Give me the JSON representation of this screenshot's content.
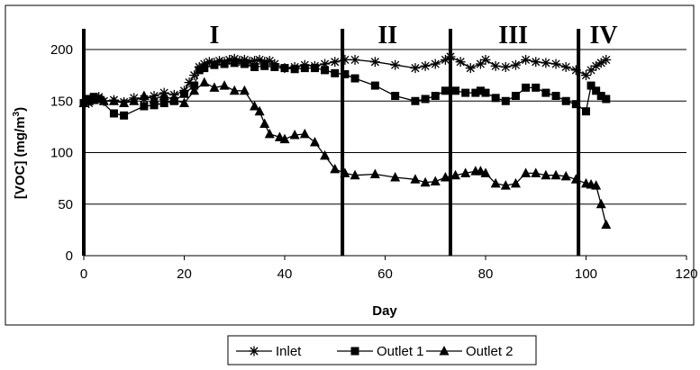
{
  "chart_data": {
    "type": "line",
    "title": "",
    "xlabel": "Day",
    "ylabel_prefix": "[VOC] (mg/m",
    "ylabel_sup": "3",
    "ylabel_suffix": ")",
    "xlim": [
      0,
      120
    ],
    "ylim": [
      0,
      220
    ],
    "x_ticks": [
      "0",
      "20",
      "40",
      "60",
      "80",
      "100",
      "120"
    ],
    "y_ticks": [
      "0",
      "50",
      "100",
      "150",
      "200"
    ],
    "y_grid": [
      50,
      100,
      150,
      200
    ],
    "grid": true,
    "legend_position": "bottom",
    "phase_dividers": [
      0,
      51.5,
      73,
      98.5
    ],
    "phases": [
      {
        "label": "I",
        "x": 26
      },
      {
        "label": "II",
        "x": 60.5
      },
      {
        "label": "III",
        "x": 85.5
      },
      {
        "label": "IV",
        "x": 103.5
      }
    ],
    "series": [
      {
        "name": "Inlet",
        "marker": "star",
        "points": [
          [
            1,
            148
          ],
          [
            2,
            152
          ],
          [
            3,
            154
          ],
          [
            4,
            150
          ],
          [
            6,
            151
          ],
          [
            8,
            149
          ],
          [
            10,
            153
          ],
          [
            12,
            152
          ],
          [
            14,
            155
          ],
          [
            16,
            158
          ],
          [
            18,
            156
          ],
          [
            20,
            160
          ],
          [
            21,
            168
          ],
          [
            22,
            175
          ],
          [
            23,
            183
          ],
          [
            24,
            186
          ],
          [
            25,
            188
          ],
          [
            26,
            187
          ],
          [
            27,
            189
          ],
          [
            28,
            188
          ],
          [
            29,
            190
          ],
          [
            30,
            191
          ],
          [
            31,
            189
          ],
          [
            32,
            190
          ],
          [
            33,
            188
          ],
          [
            34,
            189
          ],
          [
            35,
            190
          ],
          [
            36,
            188
          ],
          [
            37,
            189
          ],
          [
            38,
            186
          ],
          [
            40,
            182
          ],
          [
            42,
            183
          ],
          [
            44,
            185
          ],
          [
            46,
            184
          ],
          [
            48,
            186
          ],
          [
            50,
            188
          ],
          [
            52,
            190
          ],
          [
            54,
            190
          ],
          [
            58,
            188
          ],
          [
            62,
            185
          ],
          [
            66,
            182
          ],
          [
            68,
            184
          ],
          [
            70,
            186
          ],
          [
            72,
            190
          ],
          [
            73,
            193
          ],
          [
            75,
            188
          ],
          [
            77,
            182
          ],
          [
            79,
            186
          ],
          [
            80,
            190
          ],
          [
            82,
            184
          ],
          [
            84,
            183
          ],
          [
            86,
            185
          ],
          [
            88,
            190
          ],
          [
            90,
            188
          ],
          [
            92,
            187
          ],
          [
            94,
            186
          ],
          [
            96,
            183
          ],
          [
            98,
            180
          ],
          [
            100,
            175
          ],
          [
            101,
            180
          ],
          [
            102,
            184
          ],
          [
            103,
            187
          ],
          [
            104,
            190
          ]
        ]
      },
      {
        "name": "Outlet 1",
        "marker": "square",
        "points": [
          [
            0,
            148
          ],
          [
            1,
            152
          ],
          [
            2,
            154
          ],
          [
            3,
            152
          ],
          [
            6,
            138
          ],
          [
            8,
            136
          ],
          [
            12,
            145
          ],
          [
            14,
            146
          ],
          [
            16,
            148
          ],
          [
            18,
            150
          ],
          [
            20,
            157
          ],
          [
            22,
            165
          ],
          [
            23,
            180
          ],
          [
            24,
            182
          ],
          [
            26,
            185
          ],
          [
            28,
            186
          ],
          [
            30,
            187
          ],
          [
            32,
            186
          ],
          [
            34,
            183
          ],
          [
            36,
            184
          ],
          [
            38,
            183
          ],
          [
            40,
            182
          ],
          [
            42,
            181
          ],
          [
            44,
            182
          ],
          [
            46,
            182
          ],
          [
            48,
            180
          ],
          [
            50,
            177
          ],
          [
            52,
            176
          ],
          [
            54,
            172
          ],
          [
            58,
            165
          ],
          [
            62,
            155
          ],
          [
            66,
            150
          ],
          [
            68,
            152
          ],
          [
            70,
            155
          ],
          [
            72,
            160
          ],
          [
            74,
            160
          ],
          [
            76,
            158
          ],
          [
            78,
            158
          ],
          [
            79,
            160
          ],
          [
            80,
            158
          ],
          [
            82,
            153
          ],
          [
            84,
            150
          ],
          [
            86,
            155
          ],
          [
            88,
            163
          ],
          [
            90,
            163
          ],
          [
            92,
            158
          ],
          [
            94,
            155
          ],
          [
            96,
            150
          ],
          [
            98,
            147
          ],
          [
            100,
            140
          ],
          [
            101,
            165
          ],
          [
            102,
            160
          ],
          [
            103,
            155
          ],
          [
            104,
            152
          ]
        ]
      },
      {
        "name": "Outlet 2",
        "marker": "triangle",
        "points": [
          [
            0,
            148
          ],
          [
            1,
            150
          ],
          [
            2,
            151
          ],
          [
            4,
            150
          ],
          [
            6,
            150
          ],
          [
            8,
            148
          ],
          [
            10,
            150
          ],
          [
            12,
            155
          ],
          [
            14,
            152
          ],
          [
            16,
            155
          ],
          [
            18,
            151
          ],
          [
            20,
            148
          ],
          [
            22,
            160
          ],
          [
            24,
            168
          ],
          [
            26,
            163
          ],
          [
            28,
            165
          ],
          [
            30,
            160
          ],
          [
            32,
            160
          ],
          [
            34,
            145
          ],
          [
            35,
            140
          ],
          [
            36,
            128
          ],
          [
            37,
            118
          ],
          [
            39,
            115
          ],
          [
            40,
            113
          ],
          [
            42,
            117
          ],
          [
            44,
            118
          ],
          [
            46,
            110
          ],
          [
            48,
            97
          ],
          [
            50,
            84
          ],
          [
            52,
            80
          ],
          [
            54,
            78
          ],
          [
            58,
            79
          ],
          [
            62,
            76
          ],
          [
            66,
            74
          ],
          [
            68,
            71
          ],
          [
            70,
            72
          ],
          [
            72,
            76
          ],
          [
            74,
            78
          ],
          [
            76,
            80
          ],
          [
            78,
            82
          ],
          [
            79,
            82
          ],
          [
            80,
            80
          ],
          [
            82,
            70
          ],
          [
            84,
            68
          ],
          [
            86,
            70
          ],
          [
            88,
            80
          ],
          [
            90,
            80
          ],
          [
            92,
            78
          ],
          [
            94,
            78
          ],
          [
            96,
            77
          ],
          [
            98,
            74
          ],
          [
            100,
            70
          ],
          [
            101,
            69
          ],
          [
            102,
            68
          ],
          [
            103,
            50
          ],
          [
            104,
            30
          ]
        ]
      }
    ]
  }
}
